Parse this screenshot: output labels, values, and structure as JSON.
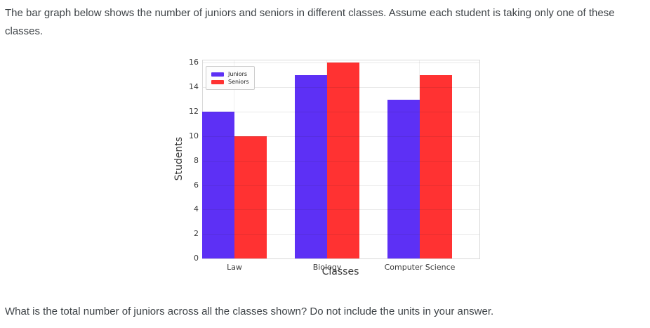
{
  "page": {
    "intro_line": "The bar graph below shows the number of juniors and seniors in different classes. Assume each student is taking only one of these classes.",
    "question": "What is the total number of juniors across all the classes shown? Do not include the units in your answer."
  },
  "chart_data": {
    "type": "bar",
    "title": "",
    "xlabel": "Classes",
    "ylabel": "Students",
    "categories": [
      "Law",
      "Biology",
      "Computer Science"
    ],
    "series": [
      {
        "name": "Juniors",
        "color": "#5d30f5",
        "values": [
          12,
          15,
          13
        ]
      },
      {
        "name": "Seniors",
        "color": "#ff3232",
        "values": [
          10,
          16,
          15
        ]
      }
    ],
    "yticks": [
      0,
      2,
      4,
      6,
      8,
      10,
      12,
      14,
      16
    ],
    "ylim": [
      0,
      16.2
    ],
    "grid": "on",
    "legend_position": "upper-left"
  }
}
